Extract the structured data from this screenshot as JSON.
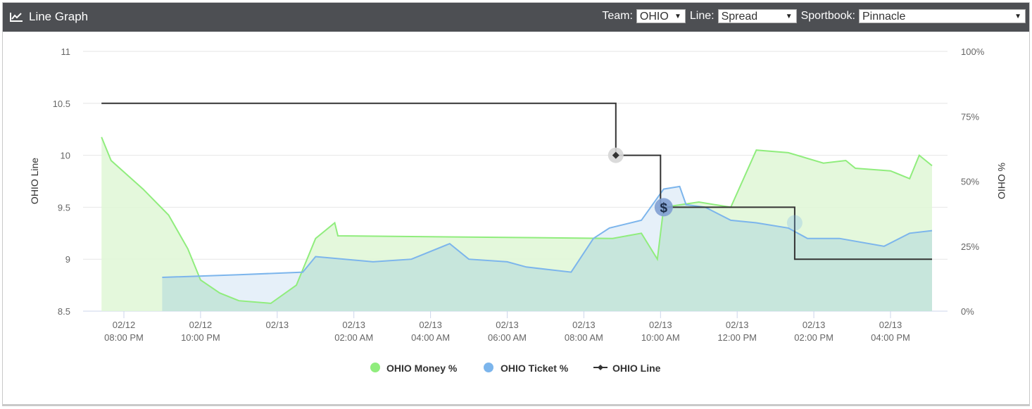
{
  "header": {
    "title": "Line Graph",
    "team_label": "Team:",
    "team_value": "OHIO",
    "line_label": "Line:",
    "line_value": "Spread",
    "sportsbook_label": "Sportbook:",
    "sportsbook_value": "Pinnacle"
  },
  "chart_data": {
    "type": "line",
    "ylabel_left": "OHIO Line",
    "ylabel_right": "% OHIO",
    "ylim_left": [
      8.5,
      11
    ],
    "ylim_right": [
      0,
      100
    ],
    "left_ticks": [
      "11",
      "10.5",
      "10",
      "9.5",
      "9",
      "8.5"
    ],
    "right_ticks": [
      "100%",
      "75%",
      "50%",
      "25%",
      "0%"
    ],
    "x_ticks": [
      {
        "date": "02/12",
        "time": "08:00 PM"
      },
      {
        "date": "02/12",
        "time": "10:00 PM"
      },
      {
        "date": "02/13",
        "time": ""
      },
      {
        "date": "02/13",
        "time": "02:00 AM"
      },
      {
        "date": "02/13",
        "time": "04:00 AM"
      },
      {
        "date": "02/13",
        "time": "06:00 AM"
      },
      {
        "date": "02/13",
        "time": "08:00 AM"
      },
      {
        "date": "02/13",
        "time": "10:00 AM"
      },
      {
        "date": "02/13",
        "time": "12:00 PM"
      },
      {
        "date": "02/13",
        "time": "02:00 PM"
      },
      {
        "date": "02/13",
        "time": "04:00 PM"
      }
    ],
    "grid": true,
    "legend_position": "bottom-center",
    "series": [
      {
        "name": "OHIO Money %",
        "color": "#90ed7d",
        "fill": "#dff7d6",
        "axis": "right",
        "points": [
          [
            "02/12 07:25 PM",
            67
          ],
          [
            "02/12 07:40 PM",
            58
          ],
          [
            "02/12 08:30 PM",
            47
          ],
          [
            "02/12 09:10 PM",
            37
          ],
          [
            "02/12 09:40 PM",
            24
          ],
          [
            "02/12 10:00 PM",
            12
          ],
          [
            "02/12 10:30 PM",
            7
          ],
          [
            "02/12 11:00 PM",
            4
          ],
          [
            "02/12 11:50 PM",
            3
          ],
          [
            "02/13 12:30 AM",
            10
          ],
          [
            "02/13 01:00 AM",
            28
          ],
          [
            "02/13 01:30 AM",
            34
          ],
          [
            "02/13 01:35 AM",
            29
          ],
          [
            "02/13 08:45 AM",
            28
          ],
          [
            "02/13 09:30 AM",
            30
          ],
          [
            "02/13 09:55 AM",
            20
          ],
          [
            "02/13 10:05 AM",
            40
          ],
          [
            "02/13 11:00 AM",
            42
          ],
          [
            "02/13 11:50 AM",
            40
          ],
          [
            "02/13 12:30 PM",
            62
          ],
          [
            "02/13 01:20 PM",
            61
          ],
          [
            "02/13 02:15 PM",
            57
          ],
          [
            "02/13 02:50 PM",
            58
          ],
          [
            "02/13 03:05 PM",
            55
          ],
          [
            "02/13 04:00 PM",
            54
          ],
          [
            "02/13 04:30 PM",
            51
          ],
          [
            "02/13 04:45 PM",
            60
          ],
          [
            "02/13 05:05 PM",
            56
          ]
        ]
      },
      {
        "name": "OHIO Ticket %",
        "color": "#7cb5ec",
        "fill": "#dce9f7",
        "axis": "right",
        "points": [
          [
            "02/12 09:00 PM",
            13
          ],
          [
            "02/12 11:00 PM",
            14
          ],
          [
            "02/13 12:40 AM",
            15
          ],
          [
            "02/13 01:00 AM",
            21
          ],
          [
            "02/13 02:30 AM",
            19
          ],
          [
            "02/13 03:30 AM",
            20
          ],
          [
            "02/13 04:30 AM",
            26
          ],
          [
            "02/13 05:00 AM",
            20
          ],
          [
            "02/13 06:00 AM",
            19
          ],
          [
            "02/13 06:30 AM",
            17
          ],
          [
            "02/13 07:40 AM",
            15
          ],
          [
            "02/13 08:15 AM",
            28
          ],
          [
            "02/13 08:40 AM",
            32
          ],
          [
            "02/13 09:30 AM",
            35
          ],
          [
            "02/13 10:05 AM",
            47
          ],
          [
            "02/13 10:30 AM",
            48
          ],
          [
            "02/13 10:40 AM",
            41
          ],
          [
            "02/13 11:10 AM",
            40
          ],
          [
            "02/13 11:50 AM",
            35
          ],
          [
            "02/13 12:30 PM",
            34
          ],
          [
            "02/13 01:20 PM",
            32
          ],
          [
            "02/13 01:50 PM",
            28
          ],
          [
            "02/13 02:40 PM",
            28
          ],
          [
            "02/13 03:50 PM",
            25
          ],
          [
            "02/13 04:30 PM",
            30
          ],
          [
            "02/13 05:05 PM",
            31
          ]
        ]
      },
      {
        "name": "OHIO Line",
        "color": "#333333",
        "axis": "left",
        "marker": "diamond",
        "points": [
          [
            "02/12 07:25 PM",
            10.5
          ],
          [
            "02/13 08:50 AM",
            10.5
          ],
          [
            "02/13 08:50 AM",
            10
          ],
          [
            "02/13 10:00 AM",
            10
          ],
          [
            "02/13 10:00 AM",
            9.5
          ],
          [
            "02/13 01:30 PM",
            9.5
          ],
          [
            "02/13 01:30 PM",
            9
          ],
          [
            "02/13 05:05 PM",
            9
          ]
        ]
      }
    ],
    "annotations": [
      {
        "type": "line-change-marker",
        "time": "02/13 08:50 AM",
        "value": 10
      },
      {
        "type": "sharp-money-marker",
        "label": "$",
        "time": "02/13 10:05 AM",
        "value": 9.5
      }
    ]
  },
  "legend": {
    "money": "OHIO Money %",
    "ticket": "OHIO Ticket %",
    "line": "OHIO Line"
  }
}
